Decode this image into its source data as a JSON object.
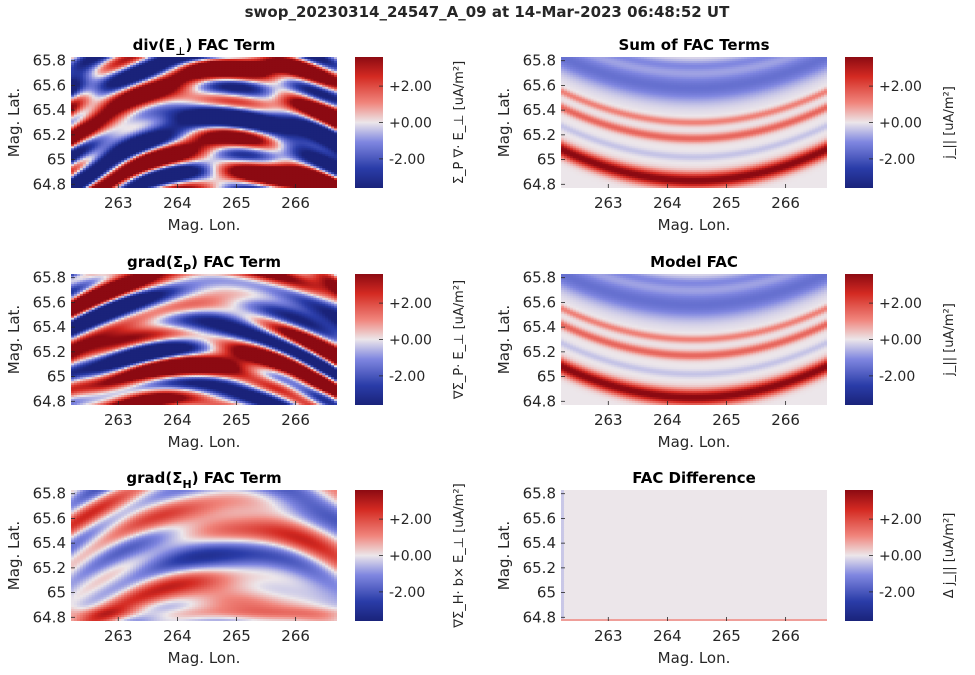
{
  "figure_title": "swop_20230314_24547_A_09 at 14-Mar-2023 06:48:52 UT",
  "colors": {
    "neg": "#2a3ca8",
    "mid": "#ece6ea",
    "pos": "#8c0a12"
  },
  "chart_data": [
    {
      "type": "heatmap",
      "title_main": "div(E",
      "title_sub": "⊥",
      "title_tail": ") FAC Term",
      "xlabel": "Mag. Lon.",
      "ylabel": "Mag. Lat.",
      "xticks": [
        "263",
        "264",
        "265",
        "266"
      ],
      "yticks": [
        "65.8",
        "65.6",
        "65.4",
        "65.2",
        "65",
        "64.8"
      ],
      "xlim": [
        262.2,
        266.7
      ],
      "ylim": [
        64.77,
        65.83
      ],
      "clim": [
        -3.6,
        3.6
      ],
      "cbar_ticks": [
        "+2.00",
        "+0.00",
        "-2.00"
      ],
      "cbar_label": "Σ_P ∇· E_⊥ [uA/m²]",
      "pattern": "noisy-strong"
    },
    {
      "type": "heatmap",
      "title_main": "Sum of FAC Terms",
      "title_sub": "",
      "title_tail": "",
      "xlabel": "Mag. Lon.",
      "ylabel": "Mag. Lat.",
      "xticks": [
        "263",
        "264",
        "265",
        "266"
      ],
      "yticks": [
        "65.8",
        "65.6",
        "65.4",
        "65.2",
        "65",
        "64.8"
      ],
      "xlim": [
        262.2,
        266.7
      ],
      "ylim": [
        64.77,
        65.83
      ],
      "clim": [
        -3.6,
        3.6
      ],
      "cbar_ticks": [
        "+2.00",
        "+0.00",
        "-2.00"
      ],
      "cbar_label": "j_|| [uA/m²]",
      "pattern": "smooth-bands"
    },
    {
      "type": "heatmap",
      "title_main": "grad(Σ",
      "title_sub": "P",
      "title_tail": ") FAC Term",
      "xlabel": "Mag. Lon.",
      "ylabel": "Mag. Lat.",
      "xticks": [
        "263",
        "264",
        "265",
        "266"
      ],
      "yticks": [
        "65.8",
        "65.6",
        "65.4",
        "65.2",
        "65",
        "64.8"
      ],
      "xlim": [
        262.2,
        266.7
      ],
      "ylim": [
        64.77,
        65.83
      ],
      "clim": [
        -3.6,
        3.6
      ],
      "cbar_ticks": [
        "+2.00",
        "+0.00",
        "-2.00"
      ],
      "cbar_label": "∇Σ_P· E_⊥ [uA/m²]",
      "pattern": "noisy-strong-2"
    },
    {
      "type": "heatmap",
      "title_main": "Model FAC",
      "title_sub": "",
      "title_tail": "",
      "xlabel": "Mag. Lon.",
      "ylabel": "Mag. Lat.",
      "xticks": [
        "263",
        "264",
        "265",
        "266"
      ],
      "yticks": [
        "65.8",
        "65.6",
        "65.4",
        "65.2",
        "65",
        "64.8"
      ],
      "xlim": [
        262.2,
        266.7
      ],
      "ylim": [
        64.77,
        65.83
      ],
      "clim": [
        -3.6,
        3.6
      ],
      "cbar_ticks": [
        "+2.00",
        "+0.00",
        "-2.00"
      ],
      "cbar_label": "j_|| [uA/m²]",
      "pattern": "smooth-bands"
    },
    {
      "type": "heatmap",
      "title_main": "grad(Σ",
      "title_sub": "H",
      "title_tail": ") FAC Term",
      "xlabel": "Mag. Lon.",
      "ylabel": "Mag. Lat.",
      "xticks": [
        "263",
        "264",
        "265",
        "266"
      ],
      "yticks": [
        "65.8",
        "65.6",
        "65.4",
        "65.2",
        "65",
        "64.8"
      ],
      "xlim": [
        262.2,
        266.7
      ],
      "ylim": [
        64.77,
        65.83
      ],
      "clim": [
        -3.6,
        3.6
      ],
      "cbar_ticks": [
        "+2.00",
        "+0.00",
        "-2.00"
      ],
      "cbar_label": "∇Σ_H· b× E_⊥ [uA/m²]",
      "pattern": "noisy-weak"
    },
    {
      "type": "heatmap",
      "title_main": "FAC Difference",
      "title_sub": "",
      "title_tail": "",
      "xlabel": "Mag. Lon.",
      "ylabel": "Mag. Lat.",
      "xticks": [
        "263",
        "264",
        "265",
        "266"
      ],
      "yticks": [
        "65.8",
        "65.6",
        "65.4",
        "65.2",
        "65",
        "64.8"
      ],
      "xlim": [
        262.2,
        266.7
      ],
      "ylim": [
        64.77,
        65.83
      ],
      "clim": [
        -3.6,
        3.6
      ],
      "cbar_ticks": [
        "+2.00",
        "+0.00",
        "-2.00"
      ],
      "cbar_label": "Δ j_|| [uA/m²]",
      "pattern": "near-zero"
    }
  ]
}
